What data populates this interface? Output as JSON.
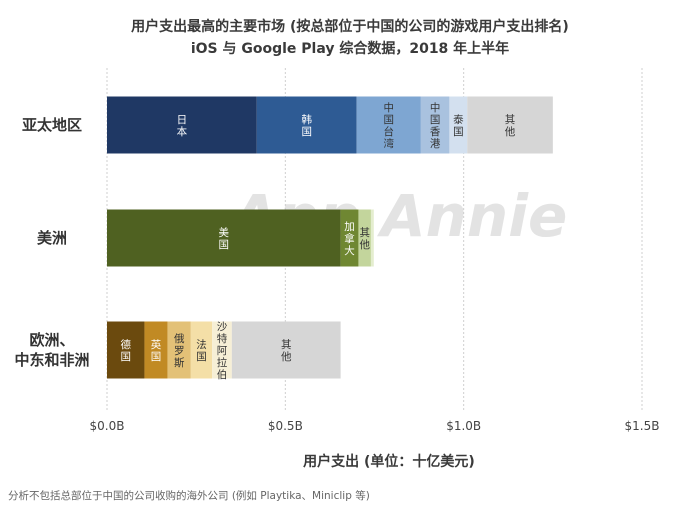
{
  "title": "用户支出最高的主要市场 (按总部位于中国的公司的游戏用户支出排名)",
  "subtitle": "iOS 与 Google Play 综合数据，2018 年上半年",
  "footnote": "分析不包括总部位于中国的公司收购的海外公司 (例如 Playtika、Miniclip 等)",
  "watermark": "App Annie",
  "chart_data": {
    "type": "bar",
    "orientation": "horizontal",
    "stacked": true,
    "title": "用户支出最高的主要市场 (按总部位于中国的公司的游戏用户支出排名)",
    "subtitle": "iOS 与 Google Play 综合数据，2018 年上半年",
    "xlabel": "用户支出 (单位：十亿美元)",
    "ylabel": "",
    "xlim": [
      0,
      1.5
    ],
    "xticks": [
      {
        "value": 0,
        "label": "$0.0B"
      },
      {
        "value": 0.5,
        "label": "$0.5B"
      },
      {
        "value": 1.0,
        "label": "$1.0B"
      },
      {
        "value": 1.5,
        "label": "$1.5B"
      }
    ],
    "grid": true,
    "categories": [
      {
        "name": "亚太地区",
        "segments": [
          {
            "label": "日本",
            "value": 0.42,
            "color": "#1f3864"
          },
          {
            "label": "韩国",
            "value": 0.28,
            "color": "#2e5b94"
          },
          {
            "label": "中国台湾",
            "value": 0.18,
            "color": "#7ea6d2"
          },
          {
            "label": "中国香港",
            "value": 0.08,
            "color": "#a9c2df"
          },
          {
            "label": "泰国",
            "value": 0.05,
            "color": "#d3e0ef"
          },
          {
            "label": "其他",
            "value": 0.24,
            "color": "#d6d6d6"
          }
        ]
      },
      {
        "name": "美洲",
        "segments": [
          {
            "label": "美国",
            "value": 0.655,
            "color": "#4f6121"
          },
          {
            "label": "加拿大",
            "value": 0.05,
            "color": "#6f8732"
          },
          {
            "label": "其他",
            "value": 0.035,
            "color": "#c3d59c"
          },
          {
            "label": "",
            "value": 0.008,
            "color": "#e4edcf"
          }
        ]
      },
      {
        "name": "欧洲、中东和非洲",
        "segments": [
          {
            "label": "德国",
            "value": 0.105,
            "color": "#6b4a0e"
          },
          {
            "label": "英国",
            "value": 0.065,
            "color": "#c18a24"
          },
          {
            "label": "俄罗斯",
            "value": 0.065,
            "color": "#e3c177"
          },
          {
            "label": "法国",
            "value": 0.06,
            "color": "#f4dfa7"
          },
          {
            "label": "沙特阿拉伯",
            "value": 0.055,
            "color": "#f6efd6"
          },
          {
            "label": "其他",
            "value": 0.305,
            "color": "#d6d6d6"
          }
        ]
      }
    ]
  }
}
